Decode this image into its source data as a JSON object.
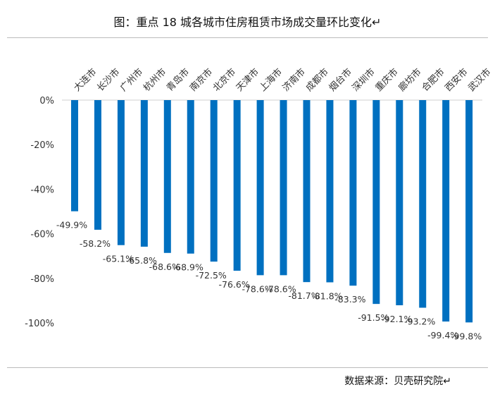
{
  "chart_data": {
    "type": "bar",
    "title": "图：重点 18 城各城市住房租赁市场成交量环比变化↵",
    "categories": [
      "大连市",
      "长沙市",
      "广州市",
      "杭州市",
      "青岛市",
      "南京市",
      "北京市",
      "天津市",
      "上海市",
      "济南市",
      "成都市",
      "烟台市",
      "深圳市",
      "重庆市",
      "廊坊市",
      "合肥市",
      "西安市",
      "武汉市"
    ],
    "values": [
      -49.9,
      -58.2,
      -65.1,
      -65.8,
      -68.6,
      -68.9,
      -72.5,
      -76.6,
      -78.6,
      -78.6,
      -81.7,
      -81.8,
      -83.3,
      -91.5,
      -92.1,
      -93.2,
      -99.4,
      -99.8
    ],
    "data_labels": [
      "-49.9%",
      "-58.2%",
      "-65.1%",
      "-65.8%",
      "-68.6%",
      "-68.9%",
      "-72.5%",
      "-76.6%",
      "-78.6%",
      "-78.6%",
      "-81.7%",
      "-81.8%",
      "-83.3%",
      "-91.5%",
      "-92.1%",
      "-93.2%",
      "-99.4%",
      "-99.8%"
    ],
    "yticks": [
      0,
      -20,
      -40,
      -60,
      -80,
      -100
    ],
    "ytick_labels": [
      "0%",
      "-20%",
      "-40%",
      "-60%",
      "-80%",
      "-100%"
    ],
    "ylim": [
      -100,
      0
    ],
    "xlabel": "",
    "ylabel": "",
    "grid": false,
    "bar_color": "#0070C0",
    "source": "数据来源：贝壳研究院↵"
  }
}
